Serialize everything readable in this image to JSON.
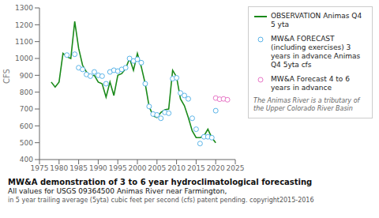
{
  "chart_data": {
    "type": "line",
    "title": "MW&A demonstration of  3 to 6 year hydroclimatological forecasting",
    "subtitle": "All values for  USGS 09364500 Animas River near Farmington,",
    "annotations": [
      "in 5 year trailing average (5yta) cubic feet per second (cfs) patent pending.  copyright2015-2016",
      "The Animas River is a tributary of the Upper Colorado River Basin"
    ],
    "y_label": "CFS",
    "xlim": [
      1975,
      2025
    ],
    "ylim": [
      400,
      1300
    ],
    "xticks": [
      1975,
      1980,
      1985,
      1990,
      1995,
      2000,
      2005,
      2010,
      2015,
      2020,
      2025
    ],
    "yticks": [
      400,
      500,
      600,
      700,
      800,
      900,
      1000,
      1100,
      1200,
      1300
    ],
    "grid": false,
    "legend": "right",
    "series": [
      {
        "name": "OBSERVATION Animas Q4 5 yta",
        "type": "line",
        "line_style": "solid",
        "color": "#1a8a1a",
        "x": [
          1978,
          1979,
          1980,
          1981,
          1982,
          1983,
          1984,
          1985,
          1986,
          1987,
          1988,
          1989,
          1990,
          1991,
          1992,
          1993,
          1994,
          1995,
          1996,
          1997,
          1998,
          1999,
          2000,
          2001,
          2002,
          2003,
          2004,
          2005,
          2006,
          2007,
          2008,
          2009,
          2010,
          2011,
          2012,
          2013,
          2014,
          2015,
          2016,
          2017,
          2018,
          2019,
          2020
        ],
        "values": [
          860,
          830,
          860,
          1030,
          1010,
          1000,
          1220,
          1060,
          960,
          920,
          895,
          900,
          860,
          850,
          770,
          860,
          780,
          900,
          910,
          940,
          1000,
          930,
          1030,
          950,
          850,
          715,
          660,
          650,
          680,
          695,
          700,
          930,
          890,
          760,
          720,
          650,
          570,
          530,
          530,
          540,
          580,
          530,
          500
        ]
      },
      {
        "name": "MW&A FORECAST (including exercises) 3 years in advance Animas Q4 5yta cfs",
        "type": "scatter",
        "marker": "circle",
        "color": "#5ab4e8",
        "x": [
          1982,
          1984,
          1985,
          1986,
          1987,
          1988,
          1989,
          1990,
          1991,
          1992,
          1993,
          1994,
          1995,
          1996,
          1997,
          1998,
          1999,
          2000,
          2001,
          2002,
          2003,
          2004,
          2005,
          2006,
          2007,
          2008,
          2009,
          2010,
          2011,
          2012,
          2013,
          2014,
          2015,
          2016,
          2017,
          2018,
          2019,
          2020
        ],
        "values": [
          1020,
          1025,
          945,
          935,
          905,
          895,
          920,
          900,
          895,
          850,
          920,
          930,
          925,
          935,
          945,
          1000,
          985,
          995,
          975,
          850,
          715,
          670,
          665,
          645,
          680,
          675,
          880,
          885,
          795,
          780,
          760,
          645,
          580,
          495,
          535,
          535,
          530,
          690
        ]
      },
      {
        "name": "MW&A Forecast 4 to 6 years in advance",
        "type": "scatter",
        "marker": "circle",
        "color": "#e878c8",
        "x": [
          2020,
          2021,
          2022,
          2023
        ],
        "values": [
          765,
          758,
          760,
          755
        ]
      }
    ]
  }
}
